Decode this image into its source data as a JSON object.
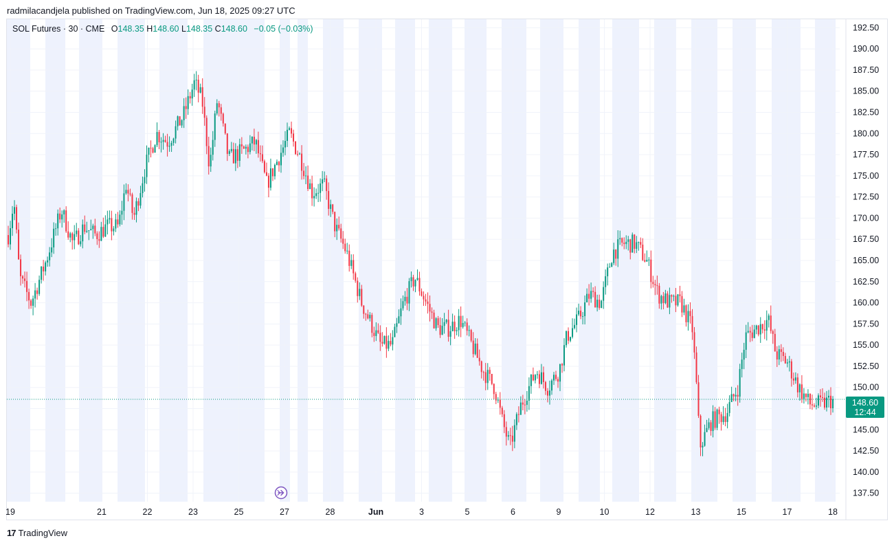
{
  "header": {
    "published": "radmilacandjela published on TradingView.com, Jun 18, 2025 09:27 UTC"
  },
  "legend": {
    "symbol": "SOL Futures · 30 · CME",
    "o_label": "O",
    "o": "148.35",
    "h_label": "H",
    "h": "148.60",
    "l_label": "L",
    "l": "148.35",
    "c_label": "C",
    "c": "148.60",
    "change": "−0.05 (−0.03%)"
  },
  "price_tag": {
    "price": "148.60",
    "countdown": "12:44"
  },
  "footer": {
    "brand": "TradingView"
  },
  "colors": {
    "up": "#089981",
    "down": "#f23645",
    "session": "#eef2fd",
    "grid": "#f0f3fa",
    "accent": "#7e57c2"
  },
  "chart_data": {
    "type": "candlestick",
    "title": "SOL Futures · 30 · CME",
    "ylim": [
      136.5,
      193.5
    ],
    "y_ticks": [
      "192.50",
      "190.00",
      "187.50",
      "185.00",
      "182.50",
      "180.00",
      "177.50",
      "175.00",
      "172.50",
      "170.00",
      "167.50",
      "165.00",
      "162.50",
      "160.00",
      "157.50",
      "155.00",
      "152.50",
      "150.00",
      "147.50",
      "145.00",
      "142.50",
      "140.00",
      "137.50"
    ],
    "x_labels": [
      {
        "label": "19",
        "t": 0.0
      },
      {
        "label": "21",
        "t": 2.0
      },
      {
        "label": "22",
        "t": 3.0
      },
      {
        "label": "23",
        "t": 4.0
      },
      {
        "label": "25",
        "t": 5.0
      },
      {
        "label": "27",
        "t": 6.0
      },
      {
        "label": "28",
        "t": 7.0
      },
      {
        "label": "Jun",
        "t": 8.0
      },
      {
        "label": "3",
        "t": 9.0
      },
      {
        "label": "5",
        "t": 10.0
      },
      {
        "label": "6",
        "t": 11.0
      },
      {
        "label": "9",
        "t": 12.0
      },
      {
        "label": "10",
        "t": 13.0
      },
      {
        "label": "12",
        "t": 14.0
      },
      {
        "label": "13",
        "t": 15.0
      },
      {
        "label": "15",
        "t": 16.0
      },
      {
        "label": "17",
        "t": 17.0
      },
      {
        "label": "18",
        "t": 18.0
      }
    ],
    "last_price": 148.6,
    "path": [
      [
        0,
        168
      ],
      [
        0.15,
        172
      ],
      [
        0.3,
        163
      ],
      [
        0.6,
        160
      ],
      [
        1.0,
        165
      ],
      [
        1.4,
        171
      ],
      [
        1.7,
        167
      ],
      [
        2.0,
        169
      ],
      [
        2.3,
        168
      ],
      [
        2.6,
        169
      ],
      [
        2.9,
        169
      ],
      [
        3.1,
        174
      ],
      [
        3.3,
        170
      ],
      [
        3.6,
        176
      ],
      [
        3.9,
        180
      ],
      [
        4.2,
        179
      ],
      [
        4.6,
        182
      ],
      [
        4.9,
        186
      ],
      [
        5.1,
        184
      ],
      [
        5.3,
        176
      ],
      [
        5.5,
        184
      ],
      [
        5.8,
        177
      ],
      [
        6.2,
        178
      ],
      [
        6.5,
        179
      ],
      [
        6.8,
        174
      ],
      [
        7.1,
        177
      ],
      [
        7.4,
        180
      ],
      [
        7.7,
        177
      ],
      [
        8.0,
        173
      ],
      [
        8.3,
        174
      ],
      [
        8.6,
        169
      ],
      [
        8.9,
        166
      ],
      [
        9.1,
        163
      ],
      [
        9.3,
        160
      ],
      [
        9.5,
        158
      ],
      [
        9.8,
        155
      ],
      [
        10.1,
        155
      ],
      [
        10.4,
        160
      ],
      [
        10.7,
        163
      ],
      [
        11.0,
        160
      ],
      [
        11.3,
        157
      ],
      [
        11.6,
        157
      ],
      [
        11.9,
        158
      ],
      [
        12.2,
        155
      ],
      [
        12.5,
        152
      ],
      [
        12.8,
        150
      ],
      [
        13.0,
        146
      ],
      [
        13.2,
        143
      ],
      [
        13.5,
        148
      ],
      [
        13.9,
        152
      ],
      [
        14.2,
        150
      ],
      [
        14.5,
        152
      ],
      [
        14.7,
        156
      ],
      [
        15.0,
        158
      ],
      [
        15.3,
        161
      ],
      [
        15.6,
        160
      ],
      [
        15.9,
        166
      ],
      [
        16.2,
        167
      ],
      [
        16.5,
        167
      ],
      [
        16.8,
        165
      ],
      [
        17.1,
        161
      ],
      [
        17.4,
        160
      ],
      [
        17.7,
        160
      ],
      [
        18.0,
        157
      ],
      [
        18.1,
        151
      ],
      [
        18.2,
        143
      ],
      [
        18.5,
        146
      ],
      [
        18.9,
        147
      ],
      [
        19.2,
        150
      ],
      [
        19.4,
        156
      ],
      [
        19.7,
        157
      ],
      [
        20.0,
        158
      ],
      [
        20.2,
        154
      ],
      [
        20.5,
        153
      ],
      [
        20.8,
        150
      ],
      [
        21.1,
        148
      ],
      [
        21.4,
        148
      ],
      [
        21.7,
        148.6
      ]
    ]
  }
}
